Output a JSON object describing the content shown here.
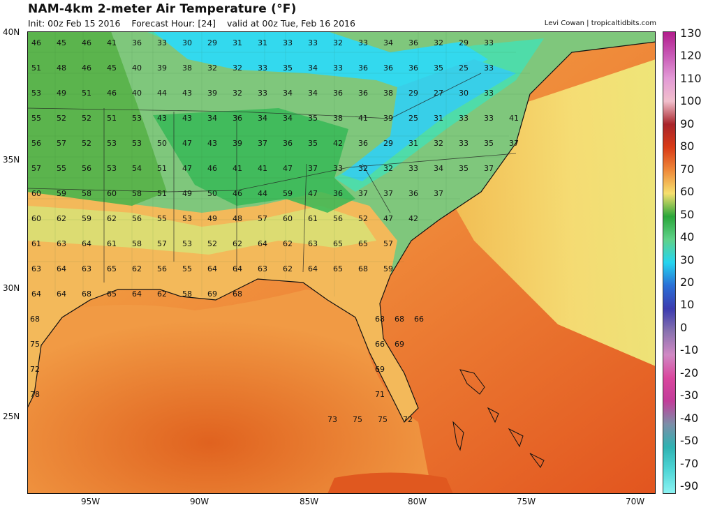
{
  "header": {
    "title": "NAM-4km 2-meter Air Temperature (°F)",
    "init": "Init: 00z Feb 15 2016",
    "forecast_hour": "Forecast Hour: [24]",
    "valid": "valid at 00z Tue, Feb 16 2016",
    "credit": "Levi Cowan | tropicaltidbits.com"
  },
  "axes": {
    "lat_labels": [
      "40N",
      "35N",
      "30N",
      "25N"
    ],
    "lon_labels": [
      "95W",
      "90W",
      "85W",
      "80W",
      "75W",
      "70W"
    ]
  },
  "colorbar": {
    "labels": [
      "130",
      "120",
      "110",
      "100",
      "90",
      "80",
      "70",
      "60",
      "50",
      "40",
      "30",
      "20",
      "10",
      "0",
      "-10",
      "-20",
      "-30",
      "-40",
      "-50",
      "-70",
      "-90"
    ],
    "colors": [
      "#b21d8c",
      "#c85ab6",
      "#e39ad6",
      "#f1bfcc",
      "#a8252b",
      "#d93b17",
      "#ef8a3a",
      "#f6e06e",
      "#2aa63a",
      "#5fd28a",
      "#25d4ef",
      "#2a6fd6",
      "#3c3cb0",
      "#8a73b0",
      "#d089c4",
      "#d9479e",
      "#c23d9a",
      "#7c8ea8",
      "#2fb2b2",
      "#4fd6d6",
      "#8cf2f2"
    ]
  },
  "station_values": [
    [
      "46",
      "45",
      "46",
      "41",
      "36",
      "33",
      "30",
      "29",
      "31",
      "31",
      "33",
      "33",
      "32",
      "33",
      "34",
      "36",
      "32",
      "29",
      "33"
    ],
    [
      "51",
      "48",
      "46",
      "45",
      "40",
      "39",
      "38",
      "32",
      "32",
      "33",
      "35",
      "34",
      "33",
      "36",
      "36",
      "36",
      "35",
      "25",
      "33"
    ],
    [
      "53",
      "49",
      "51",
      "46",
      "40",
      "44",
      "43",
      "39",
      "32",
      "33",
      "34",
      "34",
      "36",
      "36",
      "38",
      "29",
      "27",
      "30",
      "33"
    ],
    [
      "55",
      "52",
      "52",
      "51",
      "53",
      "43",
      "43",
      "34",
      "36",
      "34",
      "34",
      "35",
      "38",
      "41",
      "39",
      "25",
      "31",
      "33",
      "33",
      "41"
    ],
    [
      "56",
      "57",
      "52",
      "53",
      "53",
      "50",
      "47",
      "43",
      "39",
      "37",
      "36",
      "35",
      "42",
      "36",
      "29",
      "31",
      "32",
      "33",
      "35",
      "37"
    ],
    [
      "57",
      "55",
      "56",
      "53",
      "54",
      "51",
      "47",
      "46",
      "41",
      "41",
      "47",
      "37",
      "33",
      "32",
      "32",
      "33",
      "34",
      "35",
      "37"
    ],
    [
      "60",
      "59",
      "58",
      "60",
      "58",
      "51",
      "49",
      "50",
      "46",
      "44",
      "59",
      "47",
      "36",
      "37",
      "37",
      "36",
      "37"
    ],
    [
      "60",
      "62",
      "59",
      "62",
      "56",
      "55",
      "53",
      "49",
      "48",
      "57",
      "60",
      "61",
      "56",
      "52",
      "47",
      "42"
    ],
    [
      "61",
      "63",
      "64",
      "61",
      "58",
      "57",
      "53",
      "52",
      "62",
      "64",
      "62",
      "63",
      "65",
      "65",
      "57"
    ],
    [
      "63",
      "64",
      "63",
      "65",
      "62",
      "56",
      "55",
      "64",
      "64",
      "63",
      "62",
      "64",
      "65",
      "68",
      "59"
    ],
    [
      "64",
      "64",
      "68",
      "65",
      "64",
      "62",
      "58",
      "69",
      "68"
    ],
    [
      "68",
      "68",
      "68",
      "66"
    ],
    [
      "75",
      "66",
      "69"
    ],
    [
      "72",
      "69"
    ],
    [
      "78",
      "71"
    ],
    [
      "73",
      "75",
      "75",
      "72"
    ]
  ]
}
